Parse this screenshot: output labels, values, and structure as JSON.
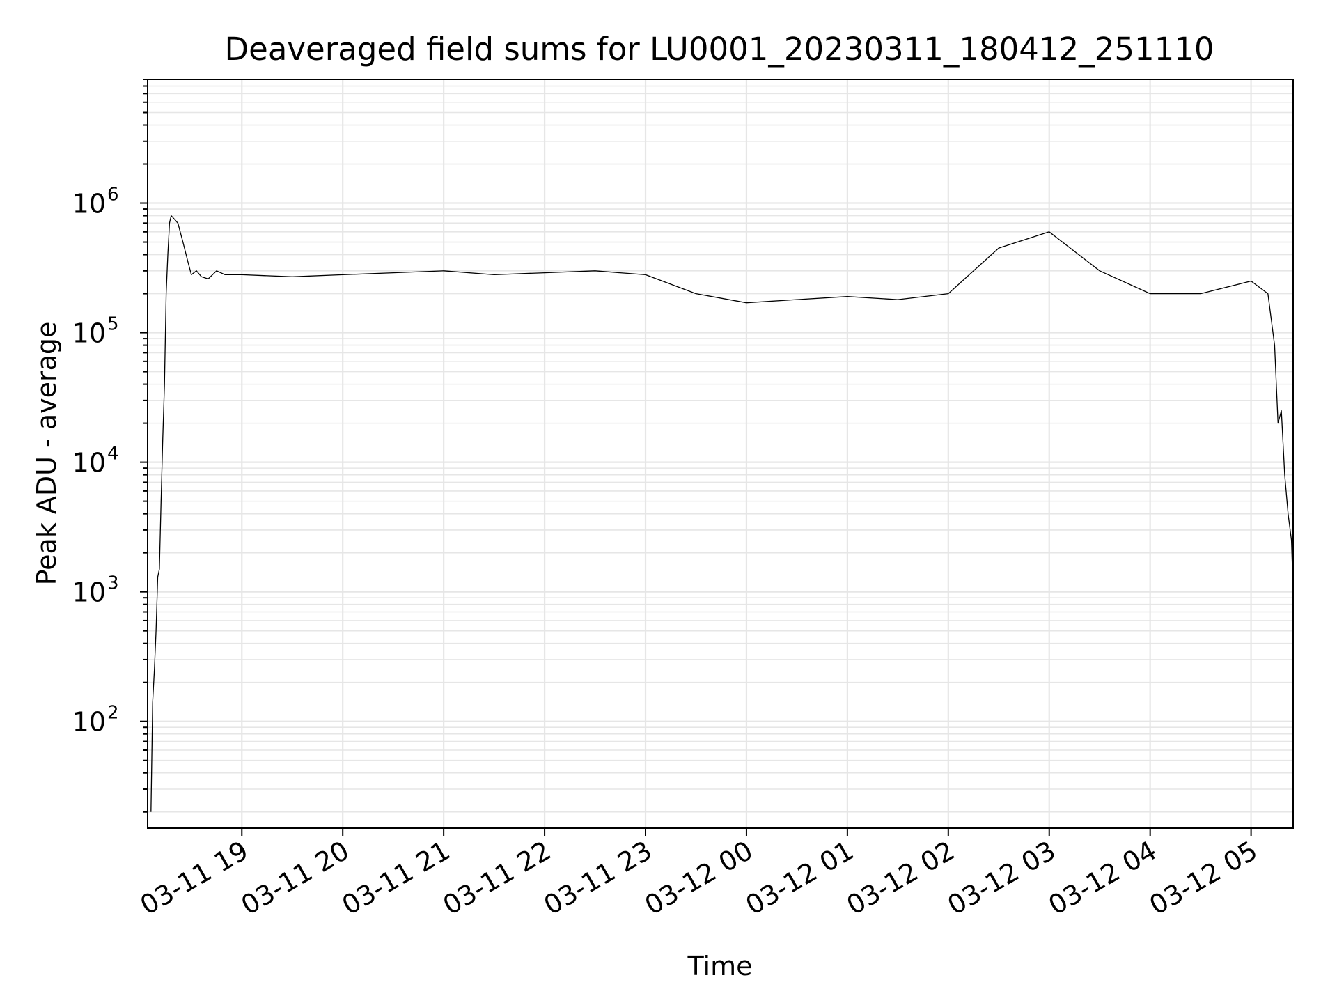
{
  "chart_data": {
    "type": "line",
    "title": "Deaveraged field sums for LU0001_20230311_180412_251110",
    "xlabel": "Time",
    "ylabel": "Peak ADU - average",
    "y_scale": "log",
    "ylim": [
      15,
      9000000
    ],
    "xlim": [
      "2023-03-11 18:04",
      "2023-03-12 05:25"
    ],
    "x_ticks": [
      "03-11 19",
      "03-11 20",
      "03-11 21",
      "03-11 22",
      "03-11 23",
      "03-12 00",
      "03-12 01",
      "03-12 02",
      "03-12 03",
      "03-12 04",
      "03-12 05"
    ],
    "y_ticks": [
      {
        "base": "10",
        "exp": "2",
        "value": 100
      },
      {
        "base": "10",
        "exp": "3",
        "value": 1000
      },
      {
        "base": "10",
        "exp": "4",
        "value": 10000
      },
      {
        "base": "10",
        "exp": "5",
        "value": 100000
      },
      {
        "base": "10",
        "exp": "6",
        "value": 1000000
      }
    ],
    "grid": true,
    "series": [
      {
        "color": "#000000",
        "x": [
          "2023-03-11 18:06",
          "2023-03-11 18:07",
          "2023-03-11 18:08",
          "2023-03-11 18:09",
          "2023-03-11 18:10",
          "2023-03-11 18:11",
          "2023-03-11 18:12",
          "2023-03-11 18:13",
          "2023-03-11 18:14",
          "2023-03-11 18:15",
          "2023-03-11 18:16",
          "2023-03-11 18:17",
          "2023-03-11 18:18",
          "2023-03-11 18:20",
          "2023-03-11 18:22",
          "2023-03-11 18:25",
          "2023-03-11 18:28",
          "2023-03-11 18:30",
          "2023-03-11 18:33",
          "2023-03-11 18:36",
          "2023-03-11 18:40",
          "2023-03-11 18:45",
          "2023-03-11 18:50",
          "2023-03-11 19:00",
          "2023-03-11 19:30",
          "2023-03-11 20:00",
          "2023-03-11 20:30",
          "2023-03-11 21:00",
          "2023-03-11 21:30",
          "2023-03-11 22:00",
          "2023-03-11 22:30",
          "2023-03-11 23:00",
          "2023-03-11 23:30",
          "2023-03-12 00:00",
          "2023-03-12 00:30",
          "2023-03-12 01:00",
          "2023-03-12 01:30",
          "2023-03-12 02:00",
          "2023-03-12 02:30",
          "2023-03-12 03:00",
          "2023-03-12 03:30",
          "2023-03-12 04:00",
          "2023-03-12 04:30",
          "2023-03-12 05:00",
          "2023-03-12 05:10",
          "2023-03-12 05:14",
          "2023-03-12 05:16",
          "2023-03-12 05:18",
          "2023-03-12 05:20",
          "2023-03-12 05:22",
          "2023-03-12 05:24",
          "2023-03-12 05:25"
        ],
        "y": [
          20,
          140,
          250,
          500,
          1300,
          1500,
          5000,
          15000,
          40000,
          200000,
          400000,
          700000,
          800000,
          750000,
          700000,
          500000,
          350000,
          280000,
          300000,
          270000,
          260000,
          300000,
          280000,
          280000,
          270000,
          280000,
          290000,
          300000,
          280000,
          290000,
          300000,
          280000,
          200000,
          170000,
          180000,
          190000,
          180000,
          200000,
          450000,
          600000,
          300000,
          200000,
          200000,
          250000,
          200000,
          80000,
          20000,
          25000,
          8000,
          4000,
          2500,
          1000
        ]
      }
    ]
  }
}
